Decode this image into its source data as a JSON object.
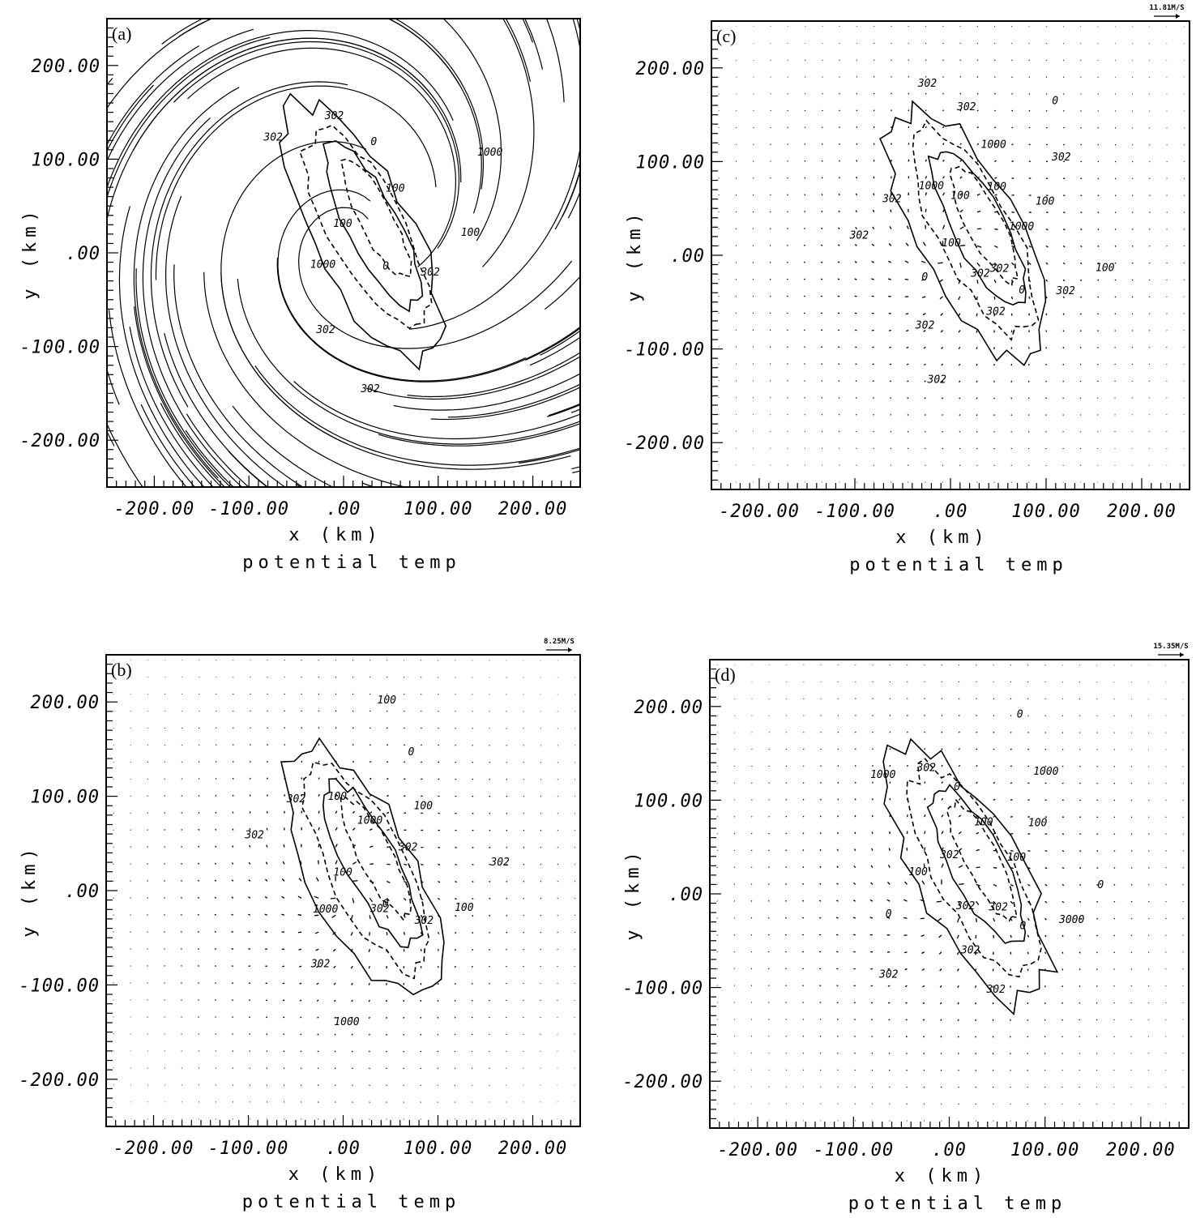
{
  "chart_data": [
    {
      "panel": "(a)",
      "type": "streamline-contour",
      "xlabel": "x (km)",
      "ylabel": "y (km)",
      "footer": "potential temp",
      "xlim": [
        -250,
        250
      ],
      "ylim": [
        -250,
        250
      ],
      "x_ticks": [
        "-200.00",
        "-100.00",
        ".00",
        "100.00",
        "200.00"
      ],
      "y_ticks": [
        "200.00",
        "100.00",
        ".00",
        "-100.00",
        "-200.00"
      ],
      "x_tick_values": [
        -200,
        -100,
        0,
        100,
        200
      ],
      "y_tick_values": [
        200,
        100,
        0,
        -100,
        -200
      ],
      "contour_labels": [
        "0",
        "302",
        "100",
        "1000",
        "100",
        "0",
        "302",
        "302",
        "100",
        "1000",
        "302",
        "302"
      ],
      "scale_label": "",
      "grid": false
    },
    {
      "panel": "(c)",
      "type": "vector-contour",
      "xlabel": "x (km)",
      "ylabel": "y (km)",
      "footer": "potential temp",
      "xlim": [
        -250,
        250
      ],
      "ylim": [
        -250,
        250
      ],
      "x_ticks": [
        "-200.00",
        "-100.00",
        ".00",
        "100.00",
        "200.00"
      ],
      "y_ticks": [
        "200.00",
        "100.00",
        ".00",
        "-100.00",
        "-200.00"
      ],
      "x_tick_values": [
        -200,
        -100,
        0,
        100,
        200
      ],
      "y_tick_values": [
        200,
        100,
        0,
        -100,
        -200
      ],
      "contour_labels": [
        "302",
        "0",
        "302",
        "100",
        "1000",
        "100",
        "302",
        "0",
        "100",
        "1000",
        "302",
        "302",
        "100",
        "1000",
        "302",
        "302",
        "100",
        "0",
        "302",
        "302",
        "302",
        "302"
      ],
      "scale_label": "11.81M/S",
      "grid": false
    },
    {
      "panel": "(b)",
      "type": "vector-contour",
      "xlabel": "x (km)",
      "ylabel": "y (km)",
      "footer": "potential temp",
      "xlim": [
        -250,
        250
      ],
      "ylim": [
        -250,
        250
      ],
      "x_ticks": [
        "-200.00",
        "-100.00",
        ".00",
        "100.00",
        "200.00"
      ],
      "y_ticks": [
        "200.00",
        "100.00",
        ".00",
        "-100.00",
        "-200.00"
      ],
      "x_tick_values": [
        -200,
        -100,
        0,
        100,
        200
      ],
      "y_tick_values": [
        200,
        100,
        0,
        -100,
        -200
      ],
      "contour_labels": [
        "0",
        "302",
        "100",
        "302",
        "302",
        "100",
        "0",
        "100",
        "1000",
        "100",
        "302",
        "302",
        "100",
        "1000",
        "302",
        "1000",
        "302"
      ],
      "scale_label": "8.25M/S",
      "grid": false
    },
    {
      "panel": "(d)",
      "type": "vector-contour",
      "xlabel": "x (km)",
      "ylabel": "y (km)",
      "footer": "potential temp",
      "xlim": [
        -250,
        250
      ],
      "ylim": [
        -250,
        250
      ],
      "x_ticks": [
        "-200.00",
        "-100.00",
        ".00",
        "100.00",
        "200.00"
      ],
      "y_ticks": [
        "200.00",
        "100.00",
        ".00",
        "-100.00",
        "-200.00"
      ],
      "x_tick_values": [
        -200,
        -100,
        0,
        100,
        200
      ],
      "y_tick_values": [
        200,
        100,
        0,
        -100,
        -200
      ],
      "contour_labels": [
        "302",
        "0",
        "3000",
        "0",
        "100",
        "100",
        "1000",
        "0",
        "100",
        "0",
        "302",
        "1000",
        "302",
        "100",
        "0",
        "302",
        "302",
        "302",
        "302"
      ],
      "scale_label": "15.35M/S",
      "grid": false
    }
  ]
}
